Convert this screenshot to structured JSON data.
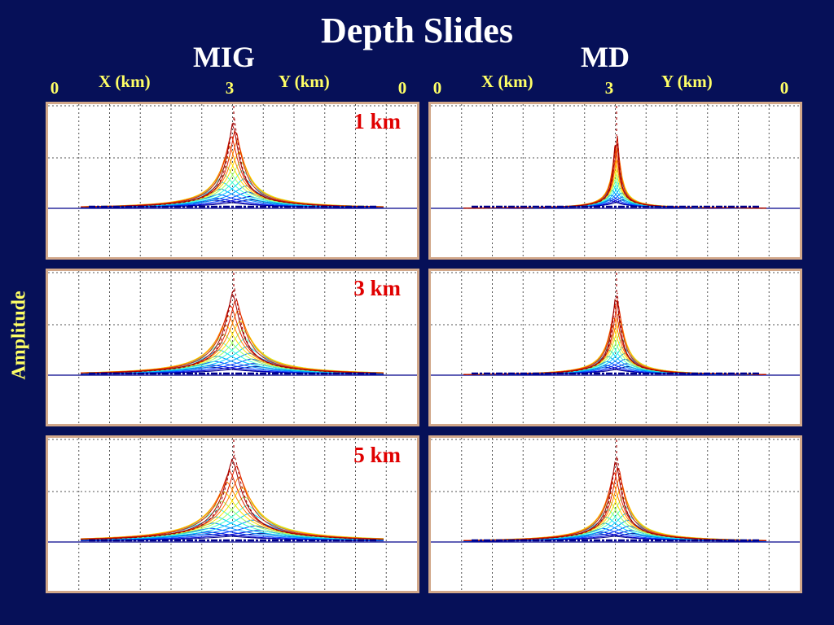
{
  "title": "Depth Slides",
  "columns": [
    {
      "title": "MIG",
      "xlabel": "X (km)",
      "ylabel2": "Y (km)",
      "ticks": [
        "0",
        "3",
        "0"
      ]
    },
    {
      "title": "MD",
      "xlabel": "X (km)",
      "ylabel2": "Y (km)",
      "ticks": [
        "0",
        "3",
        "0"
      ]
    }
  ],
  "ylabel": "Amplitude",
  "depths": [
    "1 km",
    "3 km",
    "5 km"
  ],
  "colors": {
    "background": "#061058",
    "title": "#ffffff",
    "axis_text": "#ffff66",
    "depth_text": "#e00000",
    "panel_border": "#d2a88a",
    "baseline": "#00008b"
  },
  "chart_data": [
    {
      "type": "line",
      "method": "MIG",
      "depth": "1 km",
      "peak_height": 0.68,
      "spread": 0.055,
      "tail": 0.06,
      "xlim": [
        0,
        6
      ],
      "grid": true
    },
    {
      "type": "line",
      "method": "MD",
      "depth": "1 km",
      "peak_height": 0.62,
      "spread": 0.02,
      "tail": 0.03,
      "xlim": [
        0,
        6
      ],
      "grid": true
    },
    {
      "type": "line",
      "method": "MIG",
      "depth": "3 km",
      "peak_height": 0.65,
      "spread": 0.07,
      "tail": 0.08,
      "xlim": [
        0,
        6
      ],
      "grid": true
    },
    {
      "type": "line",
      "method": "MD",
      "depth": "3 km",
      "peak_height": 0.65,
      "spread": 0.035,
      "tail": 0.04,
      "xlim": [
        0,
        6
      ],
      "grid": true
    },
    {
      "type": "line",
      "method": "MIG",
      "depth": "5 km",
      "peak_height": 0.65,
      "spread": 0.085,
      "tail": 0.1,
      "xlim": [
        0,
        6
      ],
      "grid": true
    },
    {
      "type": "line",
      "method": "MD",
      "depth": "5 km",
      "peak_height": 0.65,
      "spread": 0.05,
      "tail": 0.07,
      "xlim": [
        0,
        6
      ],
      "grid": true
    }
  ]
}
